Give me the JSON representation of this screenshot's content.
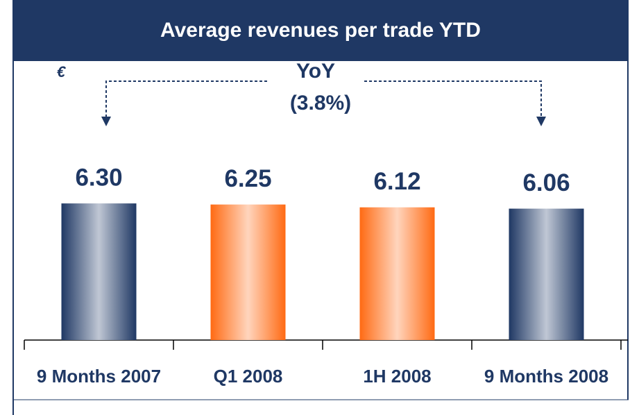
{
  "chart_data": {
    "type": "bar",
    "title": "Average revenues per trade YTD",
    "unit": "€",
    "annotations": [
      "YoY",
      "(3.8%)"
    ],
    "categories": [
      "9 Months 2007",
      "Q1 2008",
      "1H 2008",
      "9 Months 2008"
    ],
    "values": [
      6.3,
      6.25,
      6.12,
      6.06
    ],
    "value_labels": [
      "6.30",
      "6.25",
      "6.12",
      "6.06"
    ],
    "colors": [
      "#1f3864",
      "#ff6a13",
      "#ff6a13",
      "#1f3864"
    ],
    "ylim": [
      0,
      8
    ]
  }
}
